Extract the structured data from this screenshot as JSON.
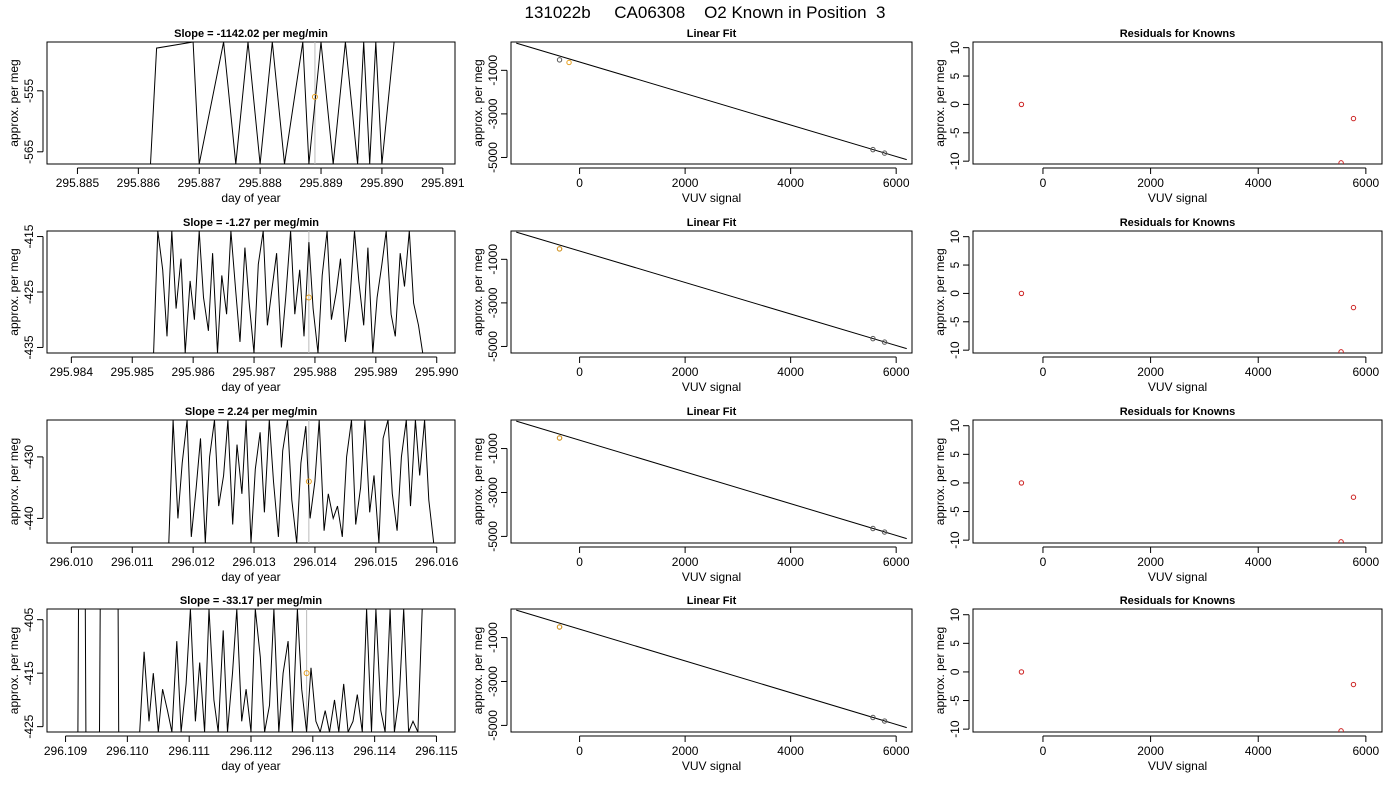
{
  "figure_title": "131022b     CA06308    O2 Known in Position  3",
  "colors": {
    "known": "#e6a020",
    "fit_point": "#555555",
    "residual": "#cc2222",
    "line": "#000000",
    "gap": "#bbbbbb"
  },
  "chart_data": [
    {
      "row": 1,
      "timeseries": {
        "type": "line",
        "title": "Slope =  -1142.02  per meg/min",
        "xlabel": "day of year",
        "ylabel": "approx. per meg",
        "xlim": [
          295.8845,
          295.8912
        ],
        "ylim": [
          -567,
          -547
        ],
        "xticks": [
          "295.885",
          "295.886",
          "295.887",
          "295.888",
          "295.889",
          "295.890",
          "295.891"
        ],
        "yticks": [
          "-555",
          "-565"
        ],
        "known_point": {
          "x": 295.8889,
          "y": -556
        },
        "trace_x": [
          295.8862,
          295.8863,
          295.8869,
          295.887,
          295.8874,
          295.8876,
          295.8878,
          295.888,
          295.8882,
          295.8884,
          295.8887,
          295.8888,
          295.889,
          295.8892,
          295.8894,
          295.8896,
          295.8897,
          295.8898,
          295.8899,
          295.89,
          295.8902
        ],
        "trace_y": [
          -567,
          -548,
          -547,
          -567,
          -547,
          -567,
          -547,
          -567,
          -547,
          -567,
          -547,
          -567,
          -547,
          -567,
          -547,
          -567,
          -547,
          -567,
          -547,
          -567,
          -547
        ]
      },
      "linear_fit": {
        "type": "scatter",
        "title": "Linear Fit",
        "xlabel": "VUV signal",
        "ylabel": "approx. per meg",
        "xlim": [
          -1300,
          6300
        ],
        "ylim": [
          -5300,
          300
        ],
        "xticks": [
          "0",
          "2000",
          "4000",
          "6000"
        ],
        "yticks": [
          "-1000",
          "-3000",
          "-5000"
        ],
        "fit_line": {
          "x": [
            -1200,
            6200
          ],
          "y": [
            250,
            -5100
          ]
        },
        "points": [
          {
            "x": -380,
            "y": -520
          },
          {
            "x": 5560,
            "y": -4640
          },
          {
            "x": 5780,
            "y": -4800
          }
        ],
        "known_points": [
          {
            "x": -200,
            "y": -640
          }
        ]
      },
      "residuals": {
        "type": "scatter",
        "title": "Residuals for Knowns",
        "xlabel": "VUV signal",
        "ylabel": "approx. per meg",
        "xlim": [
          -1300,
          6300
        ],
        "ylim": [
          -10.5,
          11
        ],
        "xticks": [
          "0",
          "2000",
          "4000",
          "6000"
        ],
        "yticks": [
          "-10",
          "-5",
          "0",
          "5",
          "10"
        ],
        "points": [
          {
            "x": -400,
            "y": 0
          },
          {
            "x": 5540,
            "y": -10.3
          },
          {
            "x": 5770,
            "y": -2.5
          }
        ]
      }
    },
    {
      "row": 2,
      "timeseries": {
        "type": "line",
        "title": "Slope =  -1.27  per meg/min",
        "xlabel": "day of year",
        "ylabel": "approx. per meg",
        "xlim": [
          295.9836,
          295.9903
        ],
        "ylim": [
          -436,
          -414
        ],
        "xticks": [
          "295.984",
          "295.985",
          "295.986",
          "295.987",
          "295.988",
          "295.989",
          "295.990"
        ],
        "yticks": [
          "-415",
          "-425",
          "-435"
        ],
        "known_point": {
          "x": 295.9879,
          "y": -426
        },
        "trace_x": [
          295.98535,
          295.98542,
          295.9855,
          295.98557,
          295.98565,
          295.98572,
          295.9858,
          295.98587,
          295.98595,
          295.98602,
          295.9861,
          295.98617,
          295.98625,
          295.98632,
          295.9864,
          295.98647,
          295.98655,
          295.98662,
          295.9867,
          295.98677,
          295.98685,
          295.98692,
          295.987,
          295.98707,
          295.98715,
          295.98722,
          295.9873,
          295.98737,
          295.98745,
          295.98752,
          295.9876,
          295.98767,
          295.98775,
          295.98782,
          295.9879,
          295.98797,
          295.98805,
          295.98812,
          295.9882,
          295.98827,
          295.98835,
          295.98842,
          295.9885,
          295.98857,
          295.98865,
          295.98872,
          295.9888,
          295.98887,
          295.98895,
          295.98902,
          295.9891,
          295.98917,
          295.98925,
          295.98932,
          295.9894,
          295.98947,
          295.98955,
          295.98962,
          295.9897,
          295.98977
        ],
        "trace_y": [
          -436,
          -414,
          -421,
          -433,
          -414,
          -428,
          -419,
          -436,
          -423,
          -430,
          -414,
          -426,
          -432,
          -418,
          -436,
          -422,
          -429,
          -414,
          -425,
          -434,
          -417,
          -427,
          -436,
          -420,
          -414,
          -431,
          -424,
          -418,
          -435,
          -426,
          -414,
          -429,
          -421,
          -433,
          -416,
          -428,
          -436,
          -422,
          -414,
          -430,
          -425,
          -419,
          -434,
          -427,
          -414,
          -423,
          -431,
          -417,
          -436,
          -426,
          -420,
          -414,
          -429,
          -433,
          -418,
          -424,
          -414,
          -427,
          -431,
          -436
        ]
      },
      "linear_fit": {
        "type": "scatter",
        "title": "Linear Fit",
        "xlabel": "VUV signal",
        "ylabel": "approx. per meg",
        "xlim": [
          -1300,
          6300
        ],
        "ylim": [
          -5300,
          300
        ],
        "xticks": [
          "0",
          "2000",
          "4000",
          "6000"
        ],
        "yticks": [
          "-1000",
          "-3000",
          "-5000"
        ],
        "fit_line": {
          "x": [
            -1200,
            6200
          ],
          "y": [
            250,
            -5100
          ]
        },
        "points": [
          {
            "x": -380,
            "y": -520
          },
          {
            "x": 5560,
            "y": -4640
          },
          {
            "x": 5780,
            "y": -4800
          }
        ],
        "known_points": [
          {
            "x": -380,
            "y": -520
          }
        ]
      },
      "residuals": {
        "type": "scatter",
        "title": "Residuals for Knowns",
        "xlabel": "VUV signal",
        "ylabel": "approx. per meg",
        "xlim": [
          -1300,
          6300
        ],
        "ylim": [
          -10.5,
          11
        ],
        "xticks": [
          "0",
          "2000",
          "4000",
          "6000"
        ],
        "yticks": [
          "-10",
          "-5",
          "0",
          "5",
          "10"
        ],
        "points": [
          {
            "x": -400,
            "y": 0
          },
          {
            "x": 5540,
            "y": -10.3
          },
          {
            "x": 5770,
            "y": -2.5
          }
        ]
      }
    },
    {
      "row": 3,
      "timeseries": {
        "type": "line",
        "title": "Slope =  2.24  per meg/min",
        "xlabel": "day of year",
        "ylabel": "approx. per meg",
        "xlim": [
          296.0096,
          296.0163
        ],
        "ylim": [
          -444,
          -424
        ],
        "xticks": [
          "296.010",
          "296.011",
          "296.012",
          "296.013",
          "296.014",
          "296.015",
          "296.016"
        ],
        "yticks": [
          "-430",
          "-440"
        ],
        "known_point": {
          "x": 296.0139,
          "y": -434
        },
        "trace_x": [
          296.0116,
          296.01167,
          296.01175,
          296.01182,
          296.0119,
          296.01197,
          296.01205,
          296.01212,
          296.0122,
          296.01227,
          296.01235,
          296.01242,
          296.0125,
          296.01257,
          296.01265,
          296.01272,
          296.0128,
          296.01287,
          296.01295,
          296.01302,
          296.0131,
          296.01317,
          296.01325,
          296.01332,
          296.0134,
          296.01347,
          296.01355,
          296.01362,
          296.0137,
          296.01377,
          296.01385,
          296.01392,
          296.014,
          296.01407,
          296.01415,
          296.01422,
          296.0143,
          296.01437,
          296.01445,
          296.01452,
          296.0146,
          296.01467,
          296.01475,
          296.01482,
          296.0149,
          296.01497,
          296.01505,
          296.01512,
          296.0152,
          296.01527,
          296.01535,
          296.01542,
          296.0155,
          296.01557,
          296.01565,
          296.01572,
          296.0158,
          296.01587,
          296.01595
        ],
        "trace_y": [
          -444,
          -424,
          -440,
          -431,
          -424,
          -443,
          -435,
          -427,
          -444,
          -430,
          -424,
          -438,
          -433,
          -424,
          -441,
          -428,
          -436,
          -424,
          -444,
          -432,
          -426,
          -439,
          -424,
          -434,
          -443,
          -429,
          -424,
          -437,
          -444,
          -431,
          -425,
          -440,
          -434,
          -424,
          -442,
          -436,
          -440,
          -438,
          -443,
          -430,
          -424,
          -441,
          -435,
          -424,
          -439,
          -433,
          -444,
          -427,
          -424,
          -436,
          -442,
          -430,
          -424,
          -438,
          -424,
          -433,
          -424,
          -437,
          -444
        ]
      },
      "linear_fit": {
        "type": "scatter",
        "title": "Linear Fit",
        "xlabel": "VUV signal",
        "ylabel": "approx. per meg",
        "xlim": [
          -1300,
          6300
        ],
        "ylim": [
          -5300,
          300
        ],
        "xticks": [
          "0",
          "2000",
          "4000",
          "6000"
        ],
        "yticks": [
          "-1000",
          "-3000",
          "-5000"
        ],
        "fit_line": {
          "x": [
            -1200,
            6200
          ],
          "y": [
            250,
            -5100
          ]
        },
        "points": [
          {
            "x": -380,
            "y": -520
          },
          {
            "x": 5560,
            "y": -4640
          },
          {
            "x": 5780,
            "y": -4800
          }
        ],
        "known_points": [
          {
            "x": -380,
            "y": -520
          }
        ]
      },
      "residuals": {
        "type": "scatter",
        "title": "Residuals for Knowns",
        "xlabel": "VUV signal",
        "ylabel": "approx. per meg",
        "xlim": [
          -1300,
          6300
        ],
        "ylim": [
          -10.5,
          11
        ],
        "xticks": [
          "0",
          "2000",
          "4000",
          "6000"
        ],
        "yticks": [
          "-10",
          "-5",
          "0",
          "5",
          "10"
        ],
        "points": [
          {
            "x": -400,
            "y": 0
          },
          {
            "x": 5540,
            "y": -10.3
          },
          {
            "x": 5770,
            "y": -2.5
          }
        ]
      }
    },
    {
      "row": 4,
      "timeseries": {
        "type": "line",
        "title": "Slope =  -33.17  per meg/min",
        "xlabel": "day of year",
        "ylabel": "approx. per meg",
        "xlim": [
          296.1087,
          296.1153
        ],
        "ylim": [
          -426,
          -403
        ],
        "xticks": [
          "296.109",
          "296.110",
          "296.111",
          "296.112",
          "296.113",
          "296.114",
          "296.115"
        ],
        "yticks": [
          "-405",
          "-415",
          "-425"
        ],
        "known_point": {
          "x": 296.1129,
          "y": -415
        },
        "trace_x": [
          296.1092,
          296.10921,
          296.10932,
          296.10933,
          296.10955,
          296.10956,
          296.10985,
          296.10986,
          296.1102,
          296.11027,
          296.11035,
          296.11042,
          296.1105,
          296.11057,
          296.11065,
          296.11072,
          296.1108,
          296.11087,
          296.11095,
          296.11102,
          296.1111,
          296.11117,
          296.11125,
          296.11132,
          296.1114,
          296.11147,
          296.11155,
          296.11162,
          296.1117,
          296.11177,
          296.11185,
          296.11192,
          296.112,
          296.11207,
          296.11215,
          296.11222,
          296.1123,
          296.11237,
          296.11245,
          296.11252,
          296.1126,
          296.11267,
          296.11275,
          296.11282,
          296.1129,
          296.11297,
          296.11305,
          296.11312,
          296.1132,
          296.11327,
          296.11335,
          296.11342,
          296.1135,
          296.11357,
          296.11365,
          296.11372,
          296.1138,
          296.11387,
          296.11395,
          296.11402,
          296.1141,
          296.11417,
          296.11425,
          296.11432,
          296.1144,
          296.11447,
          296.11455,
          296.11462,
          296.1147,
          296.11477
        ],
        "trace_y": [
          -426,
          -403,
          -403,
          -426,
          -426,
          -403,
          -403,
          -426,
          -426,
          -411,
          -424,
          -415,
          -426,
          -418,
          -422,
          -426,
          -409,
          -426,
          -417,
          -403,
          -424,
          -413,
          -426,
          -403,
          -420,
          -426,
          -407,
          -426,
          -415,
          -403,
          -424,
          -418,
          -426,
          -403,
          -412,
          -426,
          -421,
          -403,
          -426,
          -415,
          -409,
          -426,
          -403,
          -418,
          -426,
          -414,
          -424,
          -426,
          -422,
          -426,
          -420,
          -426,
          -417,
          -426,
          -424,
          -419,
          -426,
          -403,
          -426,
          -403,
          -422,
          -426,
          -403,
          -426,
          -419,
          -403,
          -426,
          -424,
          -426,
          -403
        ]
      },
      "linear_fit": {
        "type": "scatter",
        "title": "Linear Fit",
        "xlabel": "VUV signal",
        "ylabel": "approx. per meg",
        "xlim": [
          -1300,
          6300
        ],
        "ylim": [
          -5300,
          300
        ],
        "xticks": [
          "0",
          "2000",
          "4000",
          "6000"
        ],
        "yticks": [
          "-1000",
          "-3000",
          "-5000"
        ],
        "fit_line": {
          "x": [
            -1200,
            6200
          ],
          "y": [
            250,
            -5100
          ]
        },
        "points": [
          {
            "x": -380,
            "y": -520
          },
          {
            "x": 5560,
            "y": -4640
          },
          {
            "x": 5780,
            "y": -4800
          }
        ],
        "known_points": [
          {
            "x": -380,
            "y": -520
          }
        ]
      },
      "residuals": {
        "type": "scatter",
        "title": "Residuals for Knowns",
        "xlabel": "VUV signal",
        "ylabel": "approx. per meg",
        "xlim": [
          -1300,
          6300
        ],
        "ylim": [
          -10.5,
          11
        ],
        "xticks": [
          "0",
          "2000",
          "4000",
          "6000"
        ],
        "yticks": [
          "-10",
          "-5",
          "0",
          "5",
          "10"
        ],
        "points": [
          {
            "x": -400,
            "y": 0
          },
          {
            "x": 5540,
            "y": -10.3
          },
          {
            "x": 5770,
            "y": -2.2
          }
        ]
      }
    }
  ]
}
